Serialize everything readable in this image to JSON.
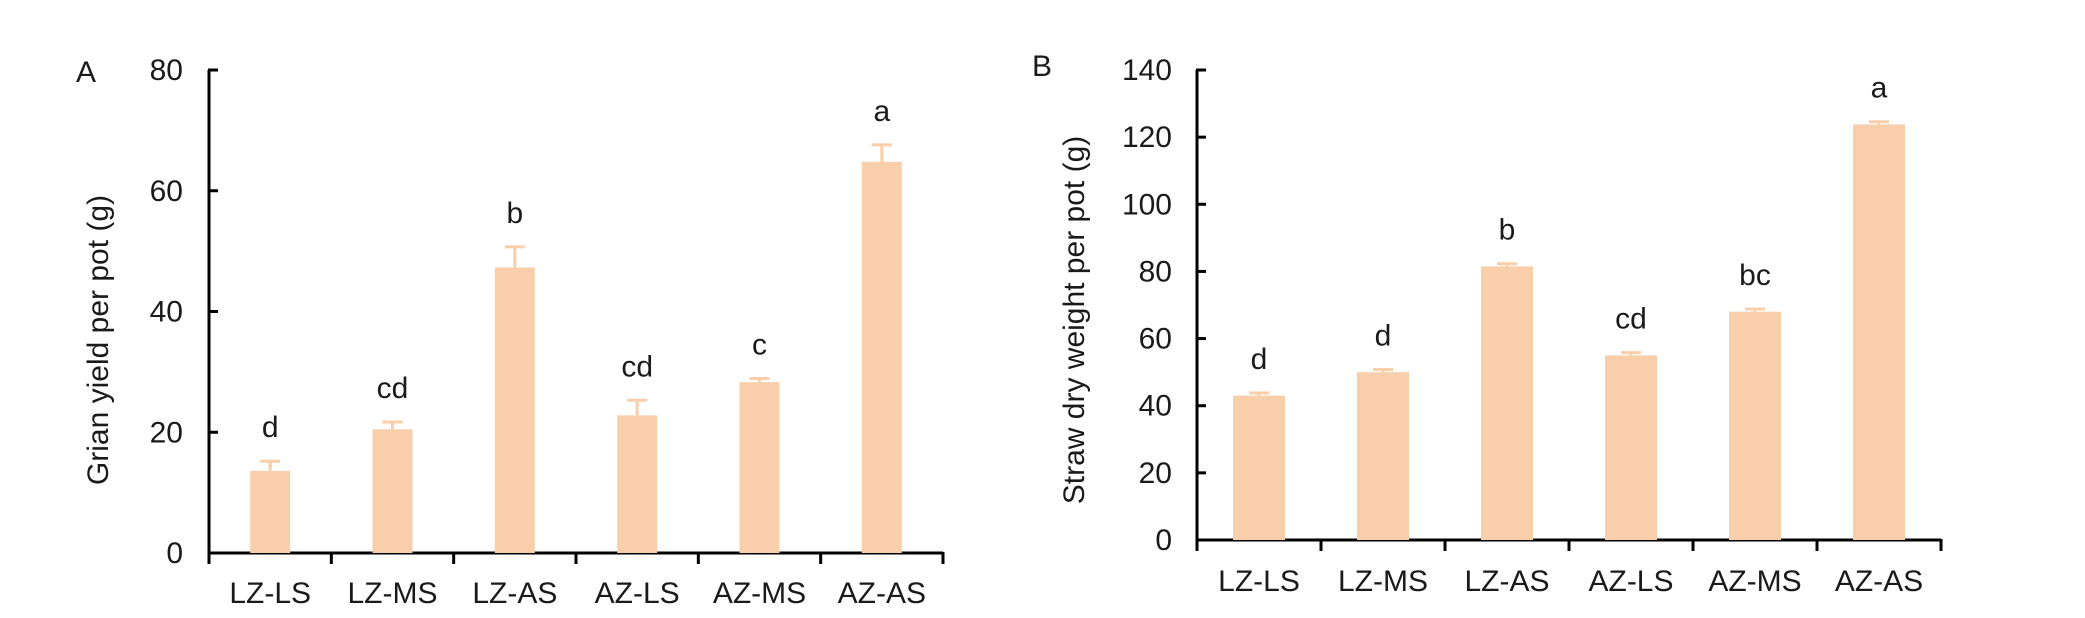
{
  "colors": {
    "bar": "#f8cfaa",
    "axis": "#000000",
    "text": "#1a1a1a"
  },
  "chart_data": [
    {
      "panel": "A",
      "type": "bar",
      "ylabel": "Grian yield per pot (g)",
      "xlabel": "",
      "ylim": [
        0,
        80
      ],
      "yticks": [
        "0",
        "20",
        "40",
        "60",
        "80"
      ],
      "categories": [
        "LZ-LS",
        "LZ-MS",
        "LZ-AS",
        "AZ-LS",
        "AZ-MS",
        "AZ-AS"
      ],
      "values": [
        13.6,
        20.5,
        47.3,
        22.8,
        28.3,
        64.8
      ],
      "errors": [
        1.6,
        1.2,
        3.4,
        2.5,
        0.6,
        2.8
      ],
      "letters": [
        "d",
        "cd",
        "b",
        "cd",
        "c",
        "a"
      ],
      "grid": false,
      "legend": "none"
    },
    {
      "panel": "B",
      "type": "bar",
      "ylabel": "Straw dry weight per pot (g)",
      "xlabel": "",
      "ylim": [
        0,
        140
      ],
      "yticks": [
        "0",
        "20",
        "40",
        "60",
        "80",
        "100",
        "120",
        "140"
      ],
      "categories": [
        "LZ-LS",
        "LZ-MS",
        "LZ-AS",
        "AZ-LS",
        "AZ-MS",
        "AZ-AS"
      ],
      "values": [
        43,
        50,
        81.5,
        55,
        68,
        123.8
      ],
      "errors": [
        0.8,
        0.8,
        0.8,
        0.8,
        0.8,
        0.8
      ],
      "letters": [
        "d",
        "d",
        "b",
        "cd",
        "bc",
        "a"
      ],
      "grid": false,
      "legend": "none"
    }
  ]
}
